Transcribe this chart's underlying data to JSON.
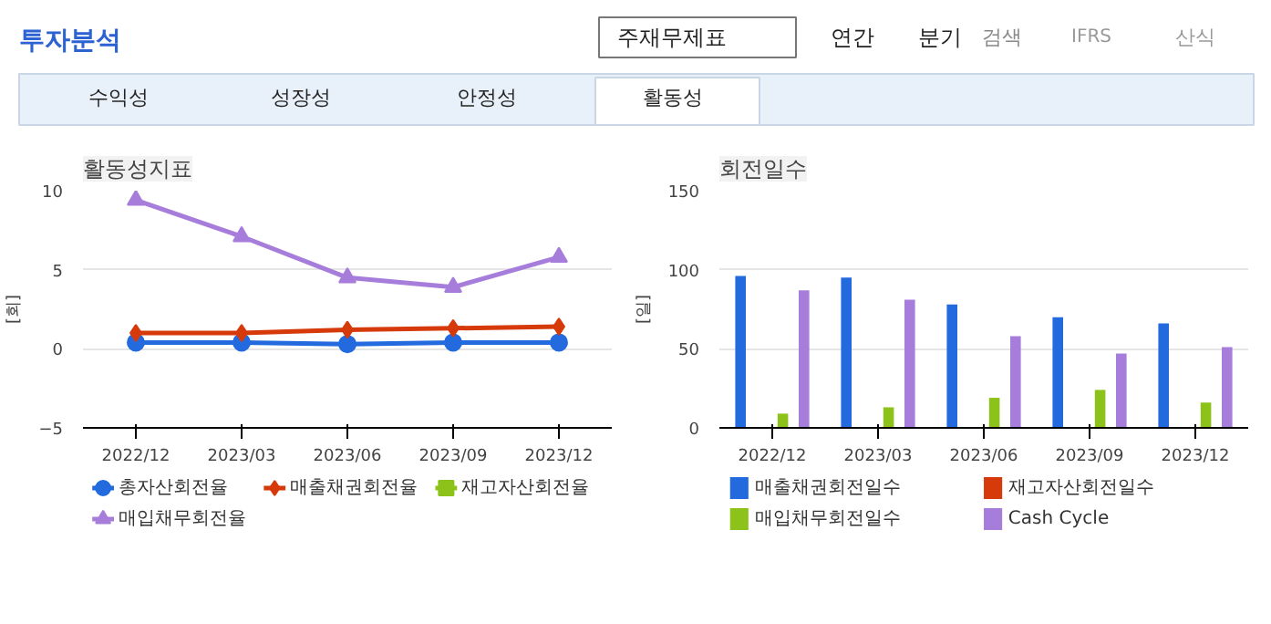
{
  "chart_data": [
    {
      "type": "line",
      "title": "활동성지표",
      "ylabel": "[회]",
      "categories": [
        "2022/12",
        "2023/03",
        "2023/06",
        "2023/09",
        "2023/12"
      ],
      "ylim": [
        -5,
        10
      ],
      "yticks": [
        -5,
        0,
        5,
        10
      ],
      "grid": "y",
      "legend": "bottom",
      "annotations": [
        "투자분석",
        "주재무제표",
        "연간",
        "분기",
        "검색",
        "IFRS",
        "산식",
        "수익성",
        "성장성",
        "안정성",
        "활동성"
      ],
      "series": [
        {
          "name": "총자산회전율",
          "color": "#236adf",
          "marker": "circle",
          "values": [
            0.4,
            0.4,
            0.3,
            0.4,
            0.4
          ]
        },
        {
          "name": "매출채권회전율",
          "color": "#d63a0b",
          "marker": "diamond",
          "values": [
            1.0,
            1.0,
            1.2,
            1.3,
            1.4
          ]
        },
        {
          "name": "재고자산회전율",
          "color": "#8cc21a",
          "marker": "square",
          "values": [
            null,
            null,
            null,
            null,
            null
          ]
        },
        {
          "name": "매입채무회전율",
          "color": "#a77ddb",
          "marker": "triangle",
          "values": [
            9.4,
            7.1,
            4.5,
            3.9,
            5.8
          ]
        }
      ]
    },
    {
      "type": "bar",
      "title": "회전일수",
      "ylabel": "[일]",
      "categories": [
        "2022/12",
        "2023/03",
        "2023/06",
        "2023/09",
        "2023/12"
      ],
      "ylim": [
        0,
        150
      ],
      "yticks": [
        0,
        50,
        100,
        150
      ],
      "grid": "y",
      "legend": "bottom",
      "series": [
        {
          "name": "매출채권회전일수",
          "color": "#236adf",
          "values": [
            96,
            95,
            78,
            70,
            66
          ]
        },
        {
          "name": "재고자산회전일수",
          "color": "#d63a0b",
          "values": [
            null,
            null,
            null,
            null,
            null
          ]
        },
        {
          "name": "매입채무회전일수",
          "color": "#8cc21a",
          "values": [
            9,
            13,
            19,
            24,
            16
          ]
        },
        {
          "name": "Cash Cycle",
          "color": "#a77ddb",
          "values": [
            87,
            81,
            58,
            47,
            51
          ]
        }
      ]
    }
  ]
}
